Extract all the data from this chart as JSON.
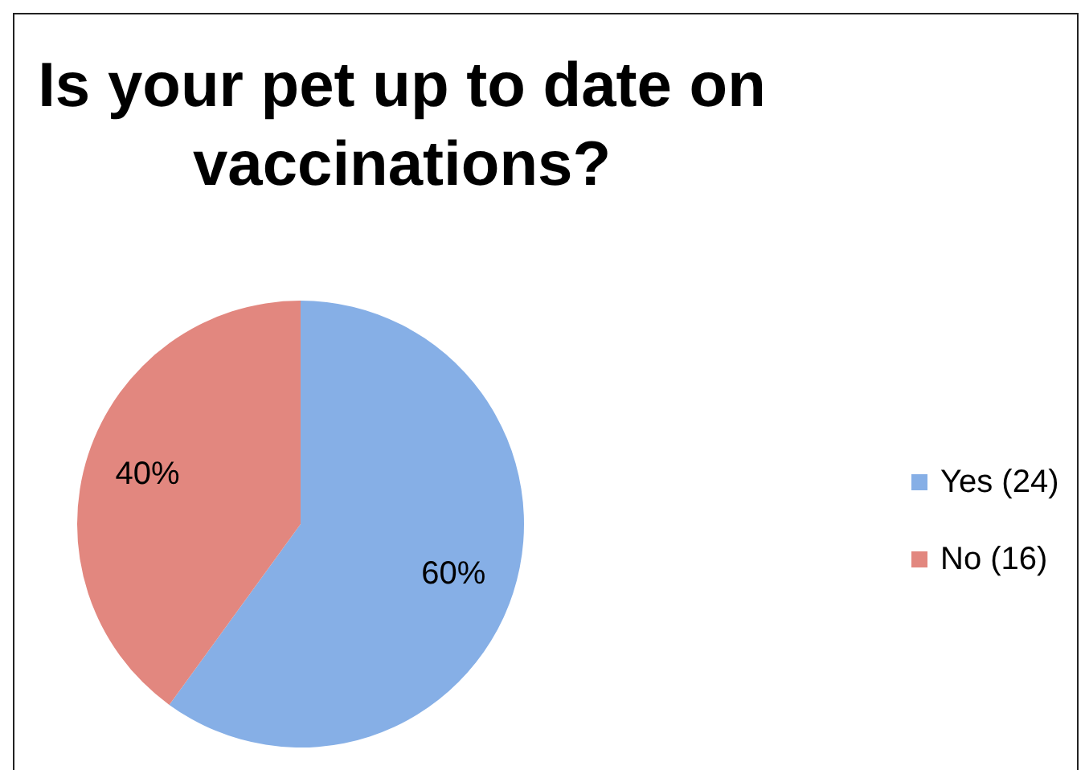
{
  "chart_data": {
    "type": "pie",
    "title": "Is your pet up to date on vaccinations?",
    "categories": [
      "Yes (24)",
      "No (16)"
    ],
    "values": [
      60,
      40
    ],
    "colors": [
      "#86afe6",
      "#e2877f"
    ],
    "value_labels": [
      "60%",
      "40%"
    ],
    "legend": "right"
  }
}
